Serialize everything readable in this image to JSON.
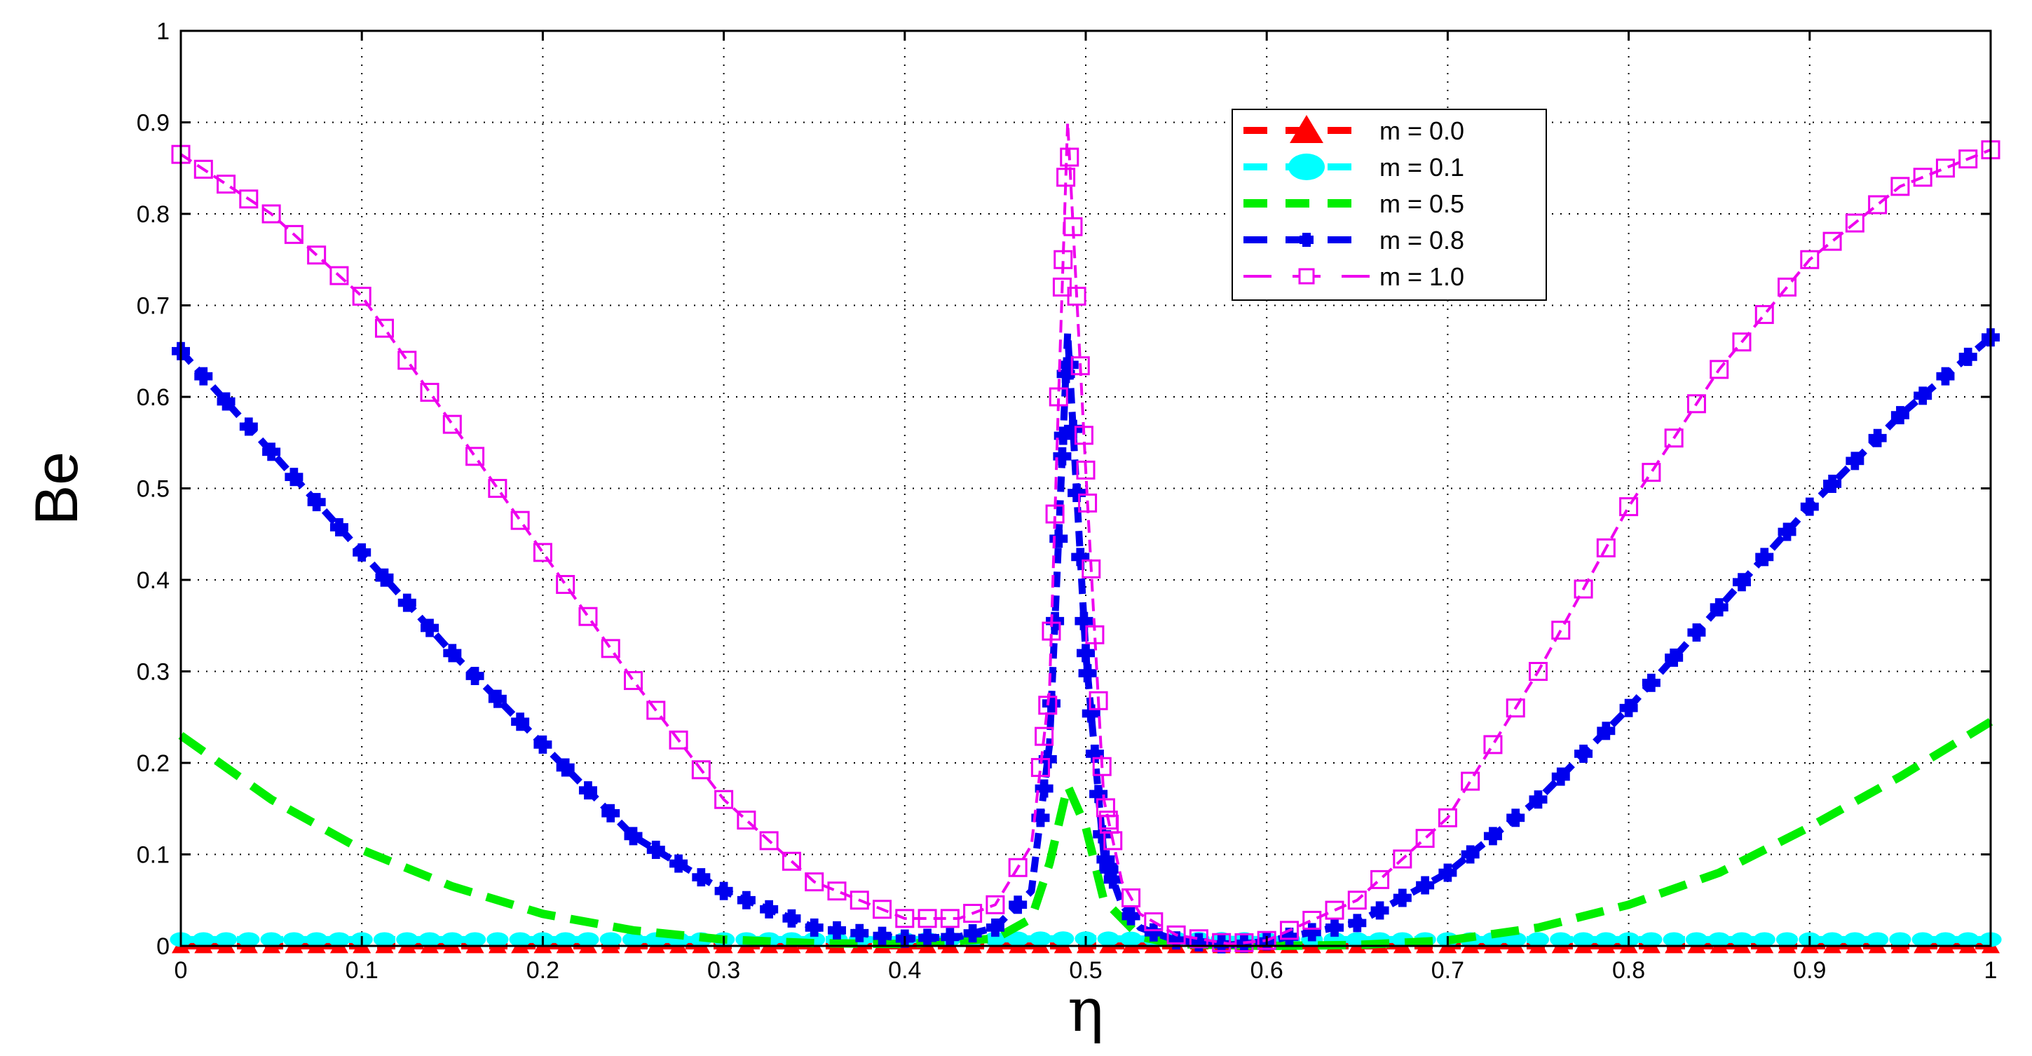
{
  "chart_data": {
    "type": "line",
    "title": "",
    "xlabel": "η",
    "ylabel": "Be",
    "xlim": [
      0,
      1
    ],
    "ylim": [
      0,
      1
    ],
    "grid": true,
    "legend_position": "top-right",
    "x_ticks": [
      "0",
      "0.1",
      "0.2",
      "0.3",
      "0.4",
      "0.5",
      "0.6",
      "0.7",
      "0.8",
      "0.9",
      "1"
    ],
    "y_ticks": [
      "0",
      "0.1",
      "0.2",
      "0.3",
      "0.4",
      "0.5",
      "0.6",
      "0.7",
      "0.8",
      "0.9",
      "1"
    ],
    "series": [
      {
        "name": "m = 0.0",
        "color": "#ff0000",
        "marker": "triangle",
        "line": "dashed",
        "x": [
          0,
          0.1,
          0.2,
          0.3,
          0.4,
          0.5,
          0.6,
          0.7,
          0.8,
          0.9,
          1.0
        ],
        "y": [
          0,
          0,
          0,
          0,
          0,
          0,
          0,
          0,
          0,
          0,
          0
        ]
      },
      {
        "name": "m = 0.1",
        "color": "#00ffff",
        "marker": "circle",
        "line": "dashed",
        "x": [
          0,
          0.1,
          0.2,
          0.3,
          0.4,
          0.49,
          0.6,
          0.7,
          0.8,
          0.9,
          1.0
        ],
        "y": [
          0.007,
          0.007,
          0.007,
          0.007,
          0.007,
          0.008,
          0.007,
          0.007,
          0.007,
          0.007,
          0.007
        ]
      },
      {
        "name": "m = 0.5",
        "color": "#00ee00",
        "marker": "none",
        "line": "dashed",
        "x": [
          0,
          0.05,
          0.1,
          0.15,
          0.2,
          0.25,
          0.3,
          0.35,
          0.4,
          0.45,
          0.47,
          0.48,
          0.49,
          0.5,
          0.51,
          0.53,
          0.55,
          0.6,
          0.65,
          0.7,
          0.75,
          0.8,
          0.85,
          0.9,
          0.95,
          1.0
        ],
        "y": [
          0.23,
          0.16,
          0.105,
          0.065,
          0.035,
          0.017,
          0.007,
          0.003,
          0.002,
          0.008,
          0.03,
          0.09,
          0.175,
          0.13,
          0.05,
          0.01,
          0.002,
          0.0,
          0.001,
          0.006,
          0.02,
          0.045,
          0.08,
          0.13,
          0.185,
          0.245
        ]
      },
      {
        "name": "m = 0.8",
        "color": "#0000ee",
        "marker": "plus",
        "line": "dashed",
        "x": [
          0,
          0.05,
          0.1,
          0.15,
          0.2,
          0.25,
          0.3,
          0.35,
          0.4,
          0.43,
          0.45,
          0.47,
          0.48,
          0.49,
          0.5,
          0.51,
          0.52,
          0.53,
          0.55,
          0.58,
          0.6,
          0.65,
          0.7,
          0.75,
          0.8,
          0.85,
          0.9,
          0.95,
          1.0
        ],
        "y": [
          0.65,
          0.54,
          0.43,
          0.32,
          0.22,
          0.12,
          0.06,
          0.02,
          0.008,
          0.01,
          0.02,
          0.06,
          0.22,
          0.67,
          0.32,
          0.1,
          0.045,
          0.02,
          0.006,
          0.001,
          0.005,
          0.025,
          0.08,
          0.16,
          0.26,
          0.37,
          0.48,
          0.58,
          0.665
        ]
      },
      {
        "name": "m = 1.0",
        "color": "#ee00ee",
        "marker": "square",
        "line": "dashed",
        "x": [
          0,
          0.05,
          0.1,
          0.15,
          0.2,
          0.25,
          0.3,
          0.35,
          0.4,
          0.43,
          0.45,
          0.47,
          0.48,
          0.485,
          0.49,
          0.5,
          0.51,
          0.52,
          0.53,
          0.55,
          0.58,
          0.6,
          0.65,
          0.7,
          0.75,
          0.8,
          0.85,
          0.9,
          0.95,
          1.0
        ],
        "y": [
          0.865,
          0.8,
          0.71,
          0.57,
          0.43,
          0.29,
          0.16,
          0.07,
          0.03,
          0.03,
          0.045,
          0.11,
          0.28,
          0.6,
          0.9,
          0.52,
          0.16,
          0.07,
          0.035,
          0.012,
          0.002,
          0.006,
          0.05,
          0.14,
          0.3,
          0.48,
          0.63,
          0.75,
          0.83,
          0.87
        ]
      }
    ]
  }
}
